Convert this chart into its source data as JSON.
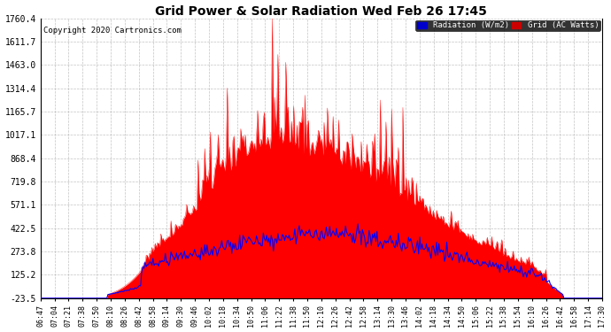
{
  "title": "Grid Power & Solar Radiation Wed Feb 26 17:45",
  "copyright": "Copyright 2020 Cartronics.com",
  "legend_radiation": "Radiation (W/m2)",
  "legend_grid": "Grid (AC Watts)",
  "background_color": "#ffffff",
  "plot_bg_color": "#ffffff",
  "yticks": [
    -23.5,
    125.2,
    273.8,
    422.5,
    571.1,
    719.8,
    868.4,
    1017.1,
    1165.7,
    1314.4,
    1463.0,
    1611.7,
    1760.4
  ],
  "ymin": -23.5,
  "ymax": 1760.4,
  "grid_color": "#aaaaaa",
  "radiation_color": "#0000ff",
  "grid_power_color": "#ff0000",
  "fill_color": "#ff0000",
  "time_labels": [
    "06:47",
    "07:04",
    "07:21",
    "07:38",
    "07:50",
    "08:10",
    "08:26",
    "08:42",
    "08:58",
    "09:14",
    "09:30",
    "09:46",
    "10:02",
    "10:18",
    "10:34",
    "10:50",
    "11:06",
    "11:22",
    "11:38",
    "11:50",
    "12:10",
    "12:26",
    "12:42",
    "12:58",
    "13:14",
    "13:30",
    "13:46",
    "14:02",
    "14:18",
    "14:34",
    "14:50",
    "15:06",
    "15:22",
    "15:38",
    "15:54",
    "16:10",
    "16:26",
    "16:42",
    "16:58",
    "17:14",
    "17:30"
  ]
}
